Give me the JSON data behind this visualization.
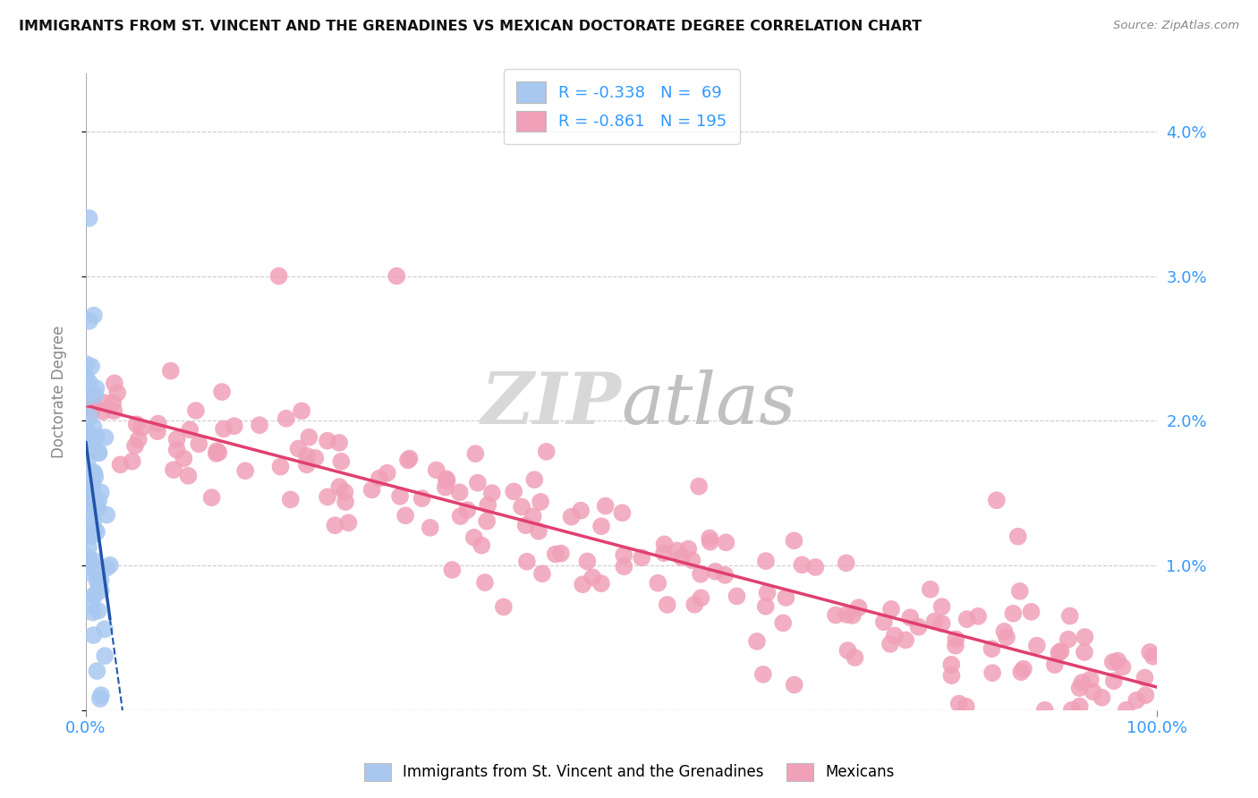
{
  "title": "IMMIGRANTS FROM ST. VINCENT AND THE GRENADINES VS MEXICAN DOCTORATE DEGREE CORRELATION CHART",
  "source": "Source: ZipAtlas.com",
  "ylabel": "Doctorate Degree",
  "blue_R": -0.338,
  "blue_N": 69,
  "pink_R": -0.861,
  "pink_N": 195,
  "blue_color": "#a8c8f0",
  "pink_color": "#f0a0b8",
  "blue_line_color": "#2255aa",
  "pink_line_color": "#e04070",
  "legend_blue": "Immigrants from St. Vincent and the Grenadines",
  "legend_pink": "Mexicans",
  "xlim": [
    0,
    100
  ],
  "ylim": [
    0,
    4.4
  ],
  "pink_line_start_y": 2.2,
  "pink_line_end_y": 0.05,
  "blue_line_start_x": 0.0,
  "blue_line_start_y": 2.3,
  "blue_line_end_x": 3.0,
  "blue_line_end_y": 0.0
}
